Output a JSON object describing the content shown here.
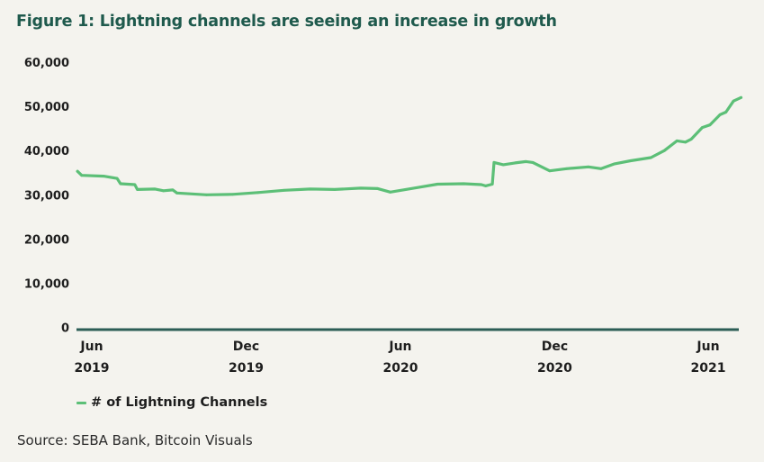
{
  "title": "Figure 1: Lightning channels are seeing an increase in growth",
  "legend_label": "# of Lightning Channels",
  "source": "Source: SEBA Bank, Bitcoin Visuals",
  "colors": {
    "line": "#5cbf77",
    "axis": "#2b5d55",
    "title": "#1f5a4d",
    "background": "#f4f3ee"
  },
  "chart_data": {
    "type": "line",
    "title": "Figure 1: Lightning channels are seeing an increase in growth",
    "xlabel": "",
    "ylabel": "",
    "ylim": [
      0,
      60000
    ],
    "yticks": [
      0,
      10000,
      20000,
      30000,
      40000,
      50000,
      60000
    ],
    "ytick_labels": [
      "0",
      "10,000",
      "20,000",
      "30,000",
      "40,000",
      "50,000",
      "60,000"
    ],
    "xticks": [
      {
        "date": "2019-06-01",
        "label_month": "Jun",
        "label_year": "2019"
      },
      {
        "date": "2019-12-01",
        "label_month": "Dec",
        "label_year": "2019"
      },
      {
        "date": "2020-06-01",
        "label_month": "Jun",
        "label_year": "2020"
      },
      {
        "date": "2020-12-01",
        "label_month": "Dec",
        "label_year": "2020"
      },
      {
        "date": "2021-06-01",
        "label_month": "Jun",
        "label_year": "2021"
      }
    ],
    "xlim": [
      "2019-05-15",
      "2021-07-10"
    ],
    "grid": false,
    "legend": "bottom-left",
    "series": [
      {
        "name": "# of Lightning Channels",
        "points": [
          [
            "2019-05-15",
            35300
          ],
          [
            "2019-05-20",
            34400
          ],
          [
            "2019-06-15",
            34200
          ],
          [
            "2019-07-01",
            33700
          ],
          [
            "2019-07-05",
            32500
          ],
          [
            "2019-07-22",
            32300
          ],
          [
            "2019-07-25",
            31200
          ],
          [
            "2019-08-15",
            31300
          ],
          [
            "2019-08-25",
            30900
          ],
          [
            "2019-09-05",
            31100
          ],
          [
            "2019-09-10",
            30400
          ],
          [
            "2019-10-15",
            30000
          ],
          [
            "2019-11-15",
            30100
          ],
          [
            "2019-12-15",
            30500
          ],
          [
            "2020-01-15",
            31000
          ],
          [
            "2020-02-15",
            31300
          ],
          [
            "2020-03-15",
            31200
          ],
          [
            "2020-04-15",
            31500
          ],
          [
            "2020-05-05",
            31400
          ],
          [
            "2020-05-20",
            30600
          ],
          [
            "2020-06-20",
            31600
          ],
          [
            "2020-07-15",
            32400
          ],
          [
            "2020-08-15",
            32500
          ],
          [
            "2020-09-05",
            32300
          ],
          [
            "2020-09-10",
            32000
          ],
          [
            "2020-09-18",
            32400
          ],
          [
            "2020-09-20",
            37300
          ],
          [
            "2020-10-01",
            36800
          ],
          [
            "2020-10-15",
            37200
          ],
          [
            "2020-10-28",
            37500
          ],
          [
            "2020-11-05",
            37300
          ],
          [
            "2020-11-25",
            35400
          ],
          [
            "2020-12-15",
            35900
          ],
          [
            "2021-01-10",
            36300
          ],
          [
            "2021-01-25",
            35900
          ],
          [
            "2021-02-10",
            37000
          ],
          [
            "2021-03-01",
            37700
          ],
          [
            "2021-03-25",
            38400
          ],
          [
            "2021-04-10",
            40000
          ],
          [
            "2021-04-25",
            42200
          ],
          [
            "2021-05-05",
            41900
          ],
          [
            "2021-05-12",
            42600
          ],
          [
            "2021-05-25",
            45200
          ],
          [
            "2021-06-03",
            45800
          ],
          [
            "2021-06-15",
            48100
          ],
          [
            "2021-06-22",
            48700
          ],
          [
            "2021-07-01",
            51200
          ],
          [
            "2021-07-10",
            52000
          ]
        ]
      }
    ]
  }
}
